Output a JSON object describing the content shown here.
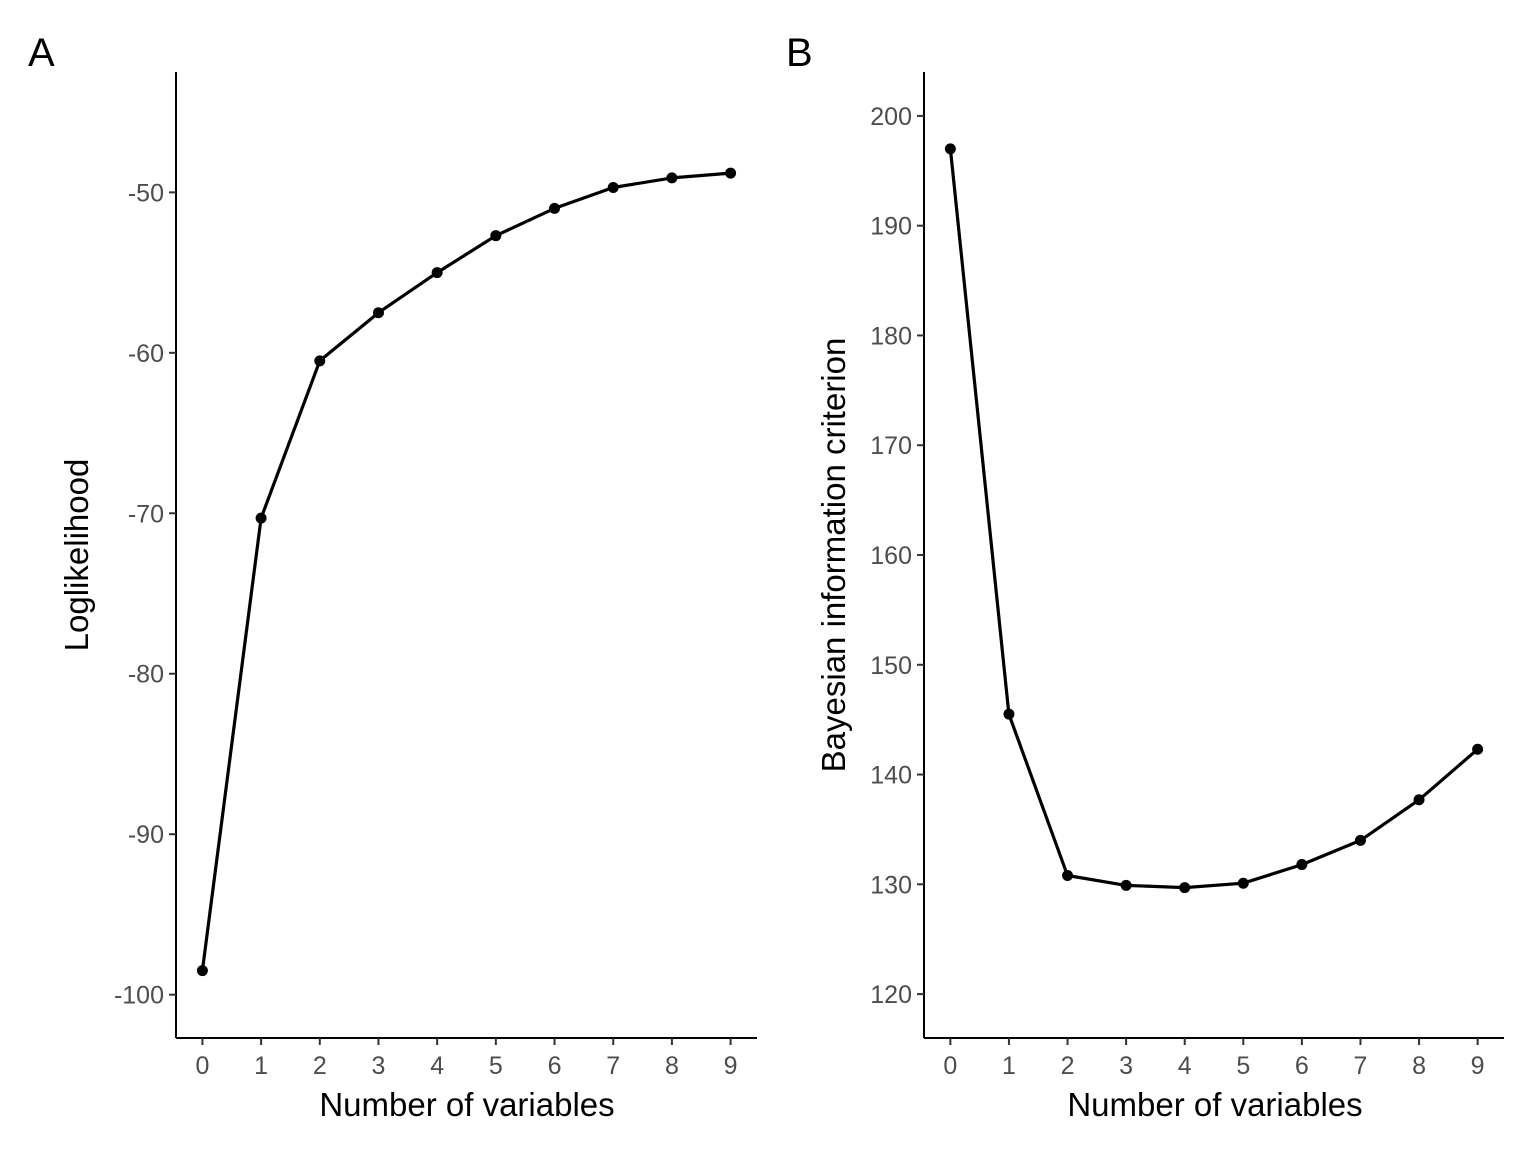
{
  "chart_data": [
    {
      "panel_label": "A",
      "type": "line",
      "xlabel": "Number of variables",
      "ylabel": "Loglikelihood",
      "x": [
        0,
        1,
        2,
        3,
        4,
        5,
        6,
        7,
        8,
        9
      ],
      "values": [
        -98.5,
        -70.3,
        -60.5,
        -57.5,
        -55.0,
        -52.7,
        -51.0,
        -49.7,
        -49.1,
        -48.8
      ],
      "xticks": [
        0,
        1,
        2,
        3,
        4,
        5,
        6,
        7,
        8,
        9
      ],
      "xtick_labels": [
        "0",
        "1",
        "2",
        "3",
        "4",
        "5",
        "6",
        "7",
        "8",
        "9"
      ],
      "yticks": [
        -100,
        -90,
        -80,
        -70,
        -60,
        -50
      ],
      "ytick_labels": [
        "-100",
        "-90",
        "-80",
        "-70",
        "-60",
        "-50"
      ],
      "xlim": [
        -0.45,
        9.45
      ],
      "ylim": [
        -102.7,
        -42.5
      ],
      "grid": false,
      "legend": "none",
      "color": "#000000"
    },
    {
      "panel_label": "B",
      "type": "line",
      "xlabel": "Number of variables",
      "ylabel": "Bayesian information criterion",
      "x": [
        0,
        1,
        2,
        3,
        4,
        5,
        6,
        7,
        8,
        9
      ],
      "values": [
        197.0,
        145.5,
        130.8,
        129.9,
        129.7,
        130.1,
        131.8,
        134.0,
        137.7,
        142.3
      ],
      "xticks": [
        0,
        1,
        2,
        3,
        4,
        5,
        6,
        7,
        8,
        9
      ],
      "xtick_labels": [
        "0",
        "1",
        "2",
        "3",
        "4",
        "5",
        "6",
        "7",
        "8",
        "9"
      ],
      "yticks": [
        120,
        130,
        140,
        150,
        160,
        170,
        180,
        190,
        200
      ],
      "ytick_labels": [
        "120",
        "130",
        "140",
        "150",
        "160",
        "170",
        "180",
        "190",
        "200"
      ],
      "xlim": [
        -0.45,
        9.45
      ],
      "ylim": [
        116,
        204
      ],
      "grid": false,
      "legend": "none",
      "color": "#000000"
    }
  ]
}
